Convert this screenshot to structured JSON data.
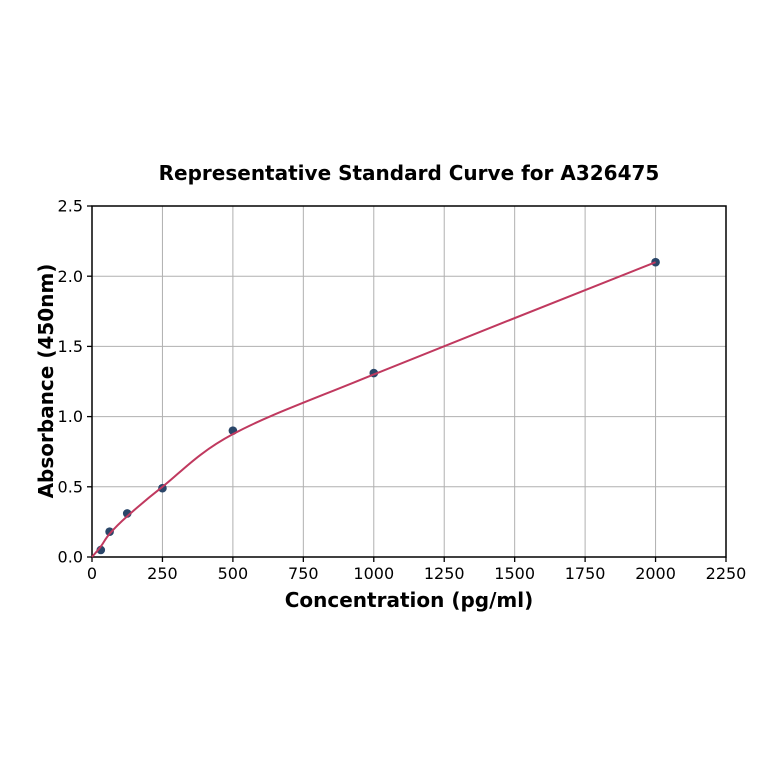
{
  "chart_data": {
    "type": "scatter",
    "title": "Representative Standard Curve for A326475",
    "xlabel": "Concentration (pg/ml)",
    "ylabel": "Absorbance (450nm)",
    "xlim": [
      0,
      2250
    ],
    "ylim": [
      0,
      2.5
    ],
    "grid": true,
    "legend": "none",
    "x_tick_values": [
      0,
      250,
      500,
      750,
      1000,
      1250,
      1500,
      1750,
      2000,
      2250
    ],
    "x_tick_labels": [
      "0",
      "250",
      "500",
      "750",
      "1000",
      "1250",
      "1500",
      "1750",
      "2000",
      "2250"
    ],
    "y_tick_values": [
      0.0,
      0.5,
      1.0,
      1.5,
      2.0,
      2.5
    ],
    "y_tick_labels": [
      "0.0",
      "0.5",
      "1.0",
      "1.5",
      "2.0",
      "2.5"
    ],
    "series": [
      {
        "name": "standard-points",
        "kind": "scatter",
        "x": [
          31.25,
          62.5,
          125,
          250,
          500,
          1000,
          2000
        ],
        "y": [
          0.05,
          0.18,
          0.31,
          0.49,
          0.9,
          1.31,
          2.1
        ]
      },
      {
        "name": "fitted-curve",
        "kind": "line",
        "x": [
          0,
          31.25,
          62.5,
          125,
          250,
          500,
          1000,
          2000
        ],
        "y": [
          0.0,
          0.075,
          0.165,
          0.29,
          0.5,
          0.875,
          1.3,
          2.1
        ]
      }
    ],
    "colors": {
      "marker": "#2a4669",
      "curve": "#c0395f",
      "grid": "#b0b0b0",
      "axis": "#000000",
      "background": "#ffffff"
    }
  }
}
